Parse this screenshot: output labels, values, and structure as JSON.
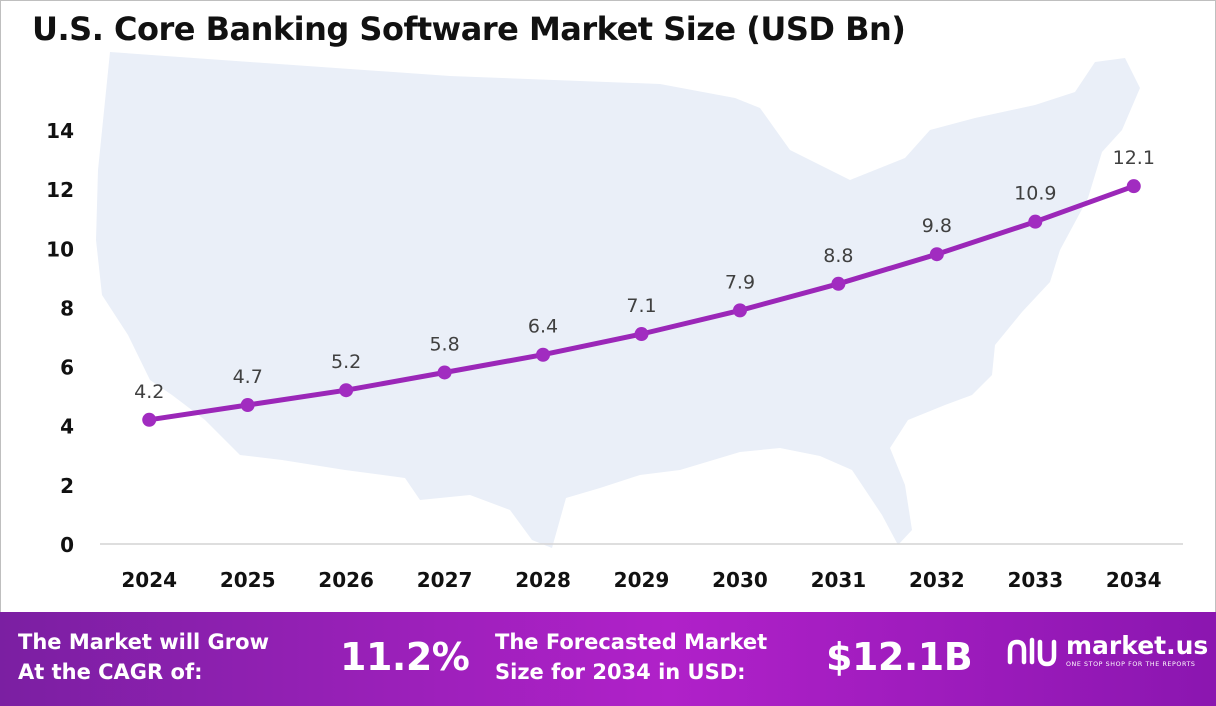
{
  "title": "U.S. Core Banking Software Market Size (USD Bn)",
  "colors": {
    "line": "#9b27b8",
    "marker": "#a12cc0",
    "map": "#eaeff8",
    "footer_start": "#7b1fa2",
    "footer_end": "#b021c9"
  },
  "chart_data": {
    "type": "line",
    "title": "U.S. Core Banking Software Market Size (USD Bn)",
    "xlabel": "",
    "ylabel": "",
    "categories": [
      "2024",
      "2025",
      "2026",
      "2027",
      "2028",
      "2029",
      "2030",
      "2031",
      "2032",
      "2033",
      "2034"
    ],
    "values": [
      4.2,
      4.7,
      5.2,
      5.8,
      6.4,
      7.1,
      7.9,
      8.8,
      9.8,
      10.9,
      12.1
    ],
    "data_labels": [
      "4.2",
      "4.7",
      "5.2",
      "5.8",
      "6.4",
      "7.1",
      "7.9",
      "8.8",
      "9.8",
      "10.9",
      "12.1"
    ],
    "yticks": [
      "0",
      "2",
      "4",
      "6",
      "8",
      "10",
      "12",
      "14"
    ],
    "ylim": [
      0,
      14
    ],
    "grid": false,
    "legend": "none"
  },
  "footer": {
    "cagr_line1": "The Market will Grow",
    "cagr_line2": "At the CAGR of:",
    "cagr_value": "11.2%",
    "forecast_line1": "The Forecasted Market",
    "forecast_line2": "Size for 2034 in USD:",
    "forecast_value": "$12.1B",
    "brand_name": "market.us",
    "brand_tagline": "ONE STOP SHOP FOR THE REPORTS"
  }
}
